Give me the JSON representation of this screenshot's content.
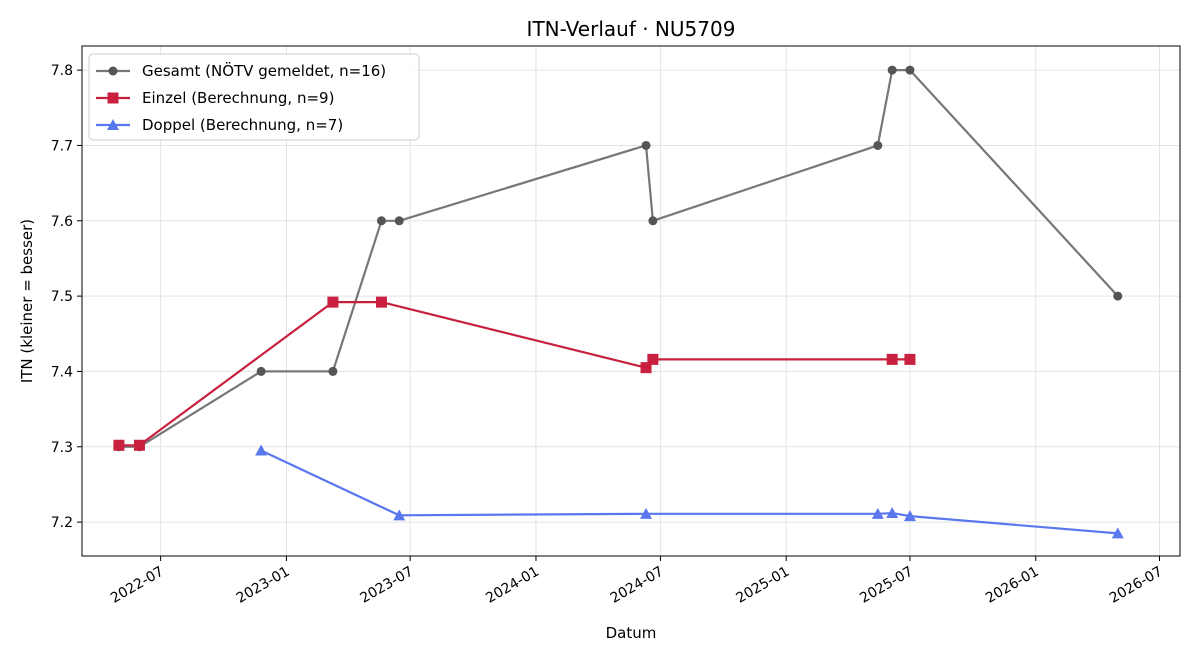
{
  "chart_data": {
    "type": "line",
    "title": "ITN-Verlauf · NU5709",
    "xlabel": "Datum",
    "ylabel": "ITN  (kleiner = besser)",
    "x_type": "date",
    "xlim": [
      "2022-03-08",
      "2026-07-31"
    ],
    "ylim": [
      7.155,
      7.832
    ],
    "x_ticks": [
      {
        "date": "2022-07-01",
        "label": "2022-07"
      },
      {
        "date": "2023-01-01",
        "label": "2023-01"
      },
      {
        "date": "2023-07-01",
        "label": "2023-07"
      },
      {
        "date": "2024-01-01",
        "label": "2024-01"
      },
      {
        "date": "2024-07-01",
        "label": "2024-07"
      },
      {
        "date": "2025-01-01",
        "label": "2025-01"
      },
      {
        "date": "2025-07-01",
        "label": "2025-07"
      },
      {
        "date": "2026-01-01",
        "label": "2026-01"
      },
      {
        "date": "2026-07-01",
        "label": "2026-07"
      }
    ],
    "y_ticks": [
      {
        "value": 7.2,
        "label": "7.2"
      },
      {
        "value": 7.3,
        "label": "7.3"
      },
      {
        "value": 7.4,
        "label": "7.4"
      },
      {
        "value": 7.5,
        "label": "7.5"
      },
      {
        "value": 7.6,
        "label": "7.6"
      },
      {
        "value": 7.7,
        "label": "7.7"
      },
      {
        "value": 7.8,
        "label": "7.8"
      }
    ],
    "grid": true,
    "legend_position": "top-left",
    "series": [
      {
        "name": "Gesamt (NÖTV gemeldet, n=16)",
        "color": "#777777",
        "marker_color": "#555555",
        "marker": "circle",
        "points": [
          {
            "x": "2022-05-01",
            "y": 7.3
          },
          {
            "x": "2022-05-31",
            "y": 7.3
          },
          {
            "x": "2022-11-25",
            "y": 7.4
          },
          {
            "x": "2023-03-10",
            "y": 7.4
          },
          {
            "x": "2023-05-20",
            "y": 7.6
          },
          {
            "x": "2023-06-15",
            "y": 7.6
          },
          {
            "x": "2024-06-10",
            "y": 7.7
          },
          {
            "x": "2024-06-20",
            "y": 7.6
          },
          {
            "x": "2025-05-15",
            "y": 7.7
          },
          {
            "x": "2025-06-05",
            "y": 7.8
          },
          {
            "x": "2025-07-01",
            "y": 7.8
          },
          {
            "x": "2026-05-01",
            "y": 7.5
          }
        ]
      },
      {
        "name": "Einzel (Berechnung, n=9)",
        "color": "#c8203e",
        "marker_color": "#c8203e",
        "marker": "square",
        "points": [
          {
            "x": "2022-05-01",
            "y": 7.302
          },
          {
            "x": "2022-05-31",
            "y": 7.302
          },
          {
            "x": "2023-03-10",
            "y": 7.492
          },
          {
            "x": "2023-05-20",
            "y": 7.492
          },
          {
            "x": "2024-06-10",
            "y": 7.405
          },
          {
            "x": "2024-06-20",
            "y": 7.416
          },
          {
            "x": "2025-06-05",
            "y": 7.416
          },
          {
            "x": "2025-07-01",
            "y": 7.416
          }
        ]
      },
      {
        "name": "Doppel (Berechnung, n=7)",
        "color": "#5a78ee",
        "marker_color": "#5a78ee",
        "marker": "triangle",
        "points": [
          {
            "x": "2022-11-25",
            "y": 7.295
          },
          {
            "x": "2023-06-15",
            "y": 7.209
          },
          {
            "x": "2024-06-10",
            "y": 7.211
          },
          {
            "x": "2025-05-15",
            "y": 7.211
          },
          {
            "x": "2025-06-05",
            "y": 7.212
          },
          {
            "x": "2025-07-01",
            "y": 7.208
          },
          {
            "x": "2026-05-01",
            "y": 7.185
          }
        ]
      }
    ]
  }
}
